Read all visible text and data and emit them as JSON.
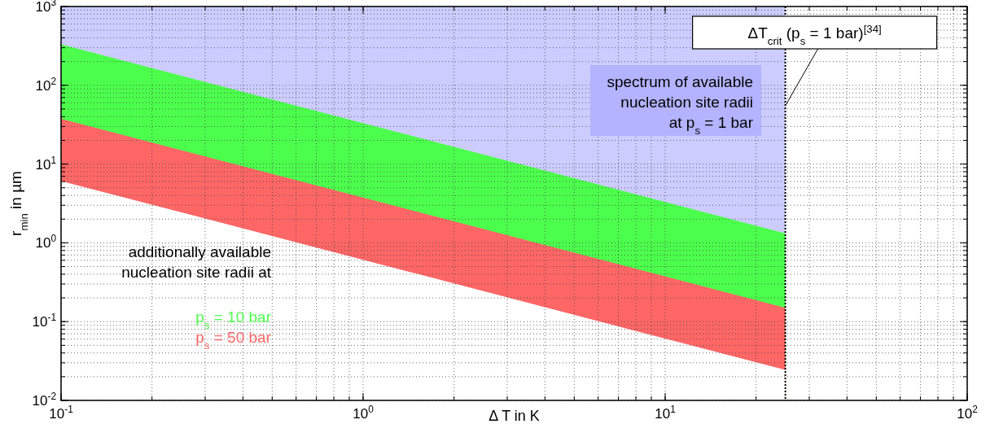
{
  "chart_data": {
    "type": "area",
    "xlabel": "Δ T in K",
    "ylabel": "r$_{min}$ in µm",
    "log": "xy",
    "grid": true,
    "legend": "bottom left",
    "xlim": [
      0.1,
      100
    ],
    "ylim": [
      0.01,
      1000
    ],
    "xticks": [
      {
        "value": 0.1,
        "label": "10$^{-1}$"
      },
      {
        "value": 1,
        "label": "10$^{0}$"
      },
      {
        "value": 10,
        "label": "10$^{1}$"
      },
      {
        "value": 100,
        "label": "10$^{2}$"
      }
    ],
    "yticks": [
      {
        "value": 0.01,
        "label": "10$^{-2}$"
      },
      {
        "value": 0.1,
        "label": "10$^{-1}$"
      },
      {
        "value": 1,
        "label": "10$^{0}$"
      },
      {
        "value": 10,
        "label": "10$^{1}$"
      },
      {
        "value": 100,
        "label": "10$^{2}$"
      },
      {
        "value": 1000,
        "label": "10$^{3}$"
      }
    ],
    "x": [
      0.1,
      25
    ],
    "series": [
      {
        "color": "#ccccff",
        "values": [
          1000,
          1000
        ]
      },
      {
        "name": "p$_{s}$ = 10 bar",
        "color": "#4dff4d",
        "values": [
          331,
          1.32
        ]
      },
      {
        "name": "p$_{s}$ = 50 bar",
        "color": "#ff6666",
        "values": [
          37.6,
          0.15
        ]
      },
      {
        "color": "#ffffff",
        "values": [
          6.1,
          0.0244
        ]
      }
    ],
    "ref_lines": [
      {
        "axis": "x",
        "value": 25,
        "line_style": "dotted",
        "color": "#000000"
      }
    ],
    "annotations": [
      "spectrum of available\nnucleation site radii\nat p$_{s}$ = 1 bar",
      "additionally available\nnucleation site radii at",
      {
        "text": "ΔT$_{crit}$ (p$_{s}$ = 1 bar)$^{[34]}$",
        "x": 25,
        "y": 55
      }
    ]
  }
}
